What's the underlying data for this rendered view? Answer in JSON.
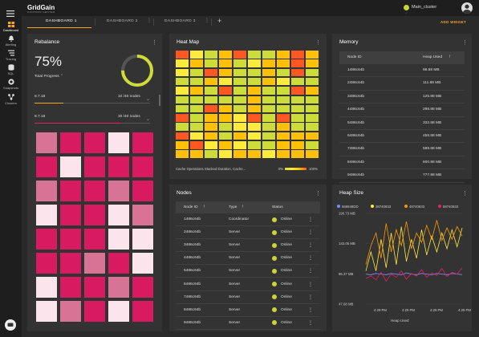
{
  "brand": {
    "name": "GridGain",
    "subtitle": "CONTROL CENTER"
  },
  "cluster": {
    "name": "Main_cluster"
  },
  "sidebar": [
    {
      "label": "Dashboard",
      "icon": "dashboard-icon"
    },
    {
      "label": "Alerting",
      "icon": "bell-icon"
    },
    {
      "label": "Tracing",
      "icon": "tracing-icon"
    },
    {
      "label": "SQL",
      "icon": "database-icon"
    },
    {
      "label": "Snapshots",
      "icon": "snapshot-icon"
    },
    {
      "label": "Clusters",
      "icon": "clusters-icon"
    }
  ],
  "tabs": [
    "DASHBOARD 1",
    "DASHBOARD 2",
    "DASHBOARD 3"
  ],
  "add_tab": "+",
  "add_widget": "ADD WIDGET",
  "rebalance": {
    "title": "Rebalance",
    "percent": "75%",
    "progress_label": "Total Progress",
    "progress_value": 0.75,
    "versions": [
      {
        "name": "8.7.18",
        "nodes": "10 /40 nodes",
        "fill": 0.25,
        "color": "#f5a623"
      },
      {
        "name": "8.7.19",
        "nodes": "30 /40 nodes",
        "fill": 0.75,
        "color": "#e0245e"
      }
    ],
    "colors": [
      "#d97396",
      "#d81b60",
      "#d81b60",
      "#fce4ec",
      "#d81b60",
      "#d81b60",
      "#fce4ec",
      "#d81b60",
      "#d81b60",
      "#d81b60",
      "#d97396",
      "#d81b60",
      "#d81b60",
      "#d97396",
      "#d81b60",
      "#fce4ec",
      "#d81b60",
      "#d81b60",
      "#fce4ec",
      "#d97396",
      "#d81b60",
      "#d81b60",
      "#d81b60",
      "#fce4ec",
      "#fce4ec",
      "#d81b60",
      "#d81b60",
      "#d97396",
      "#d81b60",
      "#fce4ec",
      "#fce4ec",
      "#d81b60",
      "#d81b60",
      "#d97396",
      "#d81b60",
      "#fce4ec",
      "#d97396",
      "#d81b60",
      "#fce4ec",
      "#d81b60"
    ]
  },
  "heatmap": {
    "title": "Heat Map",
    "legend": "Cache Operations Stacked Duration, Cache...",
    "min": "0%",
    "max": "100%",
    "colors": [
      "#ff5722",
      "#ffeb3b",
      "#cddc39",
      "#ffc107",
      "#ff5722",
      "#cddc39",
      "#cddc39",
      "#ffc107",
      "#ff5722",
      "#ffc107",
      "#ffeb3b",
      "#ffc107",
      "#cddc39",
      "#ffc107",
      "#cddc39",
      "#ffeb3b",
      "#ffc107",
      "#ffc107",
      "#ff5722",
      "#ffc107",
      "#ffeb3b",
      "#cddc39",
      "#ff5722",
      "#ffc107",
      "#cddc39",
      "#cddc39",
      "#ffc107",
      "#cddc39",
      "#ff5722",
      "#cddc39",
      "#cddc39",
      "#cddc39",
      "#ffc107",
      "#ffeb3b",
      "#cddc39",
      "#cddc39",
      "#ffc107",
      "#ffeb3b",
      "#cddc39",
      "#cddc39",
      "#ffeb3b",
      "#ffc107",
      "#cddc39",
      "#ff5722",
      "#cddc39",
      "#ffc107",
      "#cddc39",
      "#cddc39",
      "#ff5722",
      "#ffc107",
      "#cddc39",
      "#cddc39",
      "#cddc39",
      "#cddc39",
      "#cddc39",
      "#ffc107",
      "#cddc39",
      "#cddc39",
      "#cddc39",
      "#cddc39",
      "#cddc39",
      "#cddc39",
      "#ff5722",
      "#ffc107",
      "#cddc39",
      "#ffc107",
      "#cddc39",
      "#cddc39",
      "#cddc39",
      "#cddc39",
      "#ff5722",
      "#cddc39",
      "#ffc107",
      "#ffc107",
      "#ffeb3b",
      "#ff5722",
      "#cddc39",
      "#ff5722",
      "#cddc39",
      "#cddc39",
      "#cddc39",
      "#cddc39",
      "#ffc107",
      "#cddc39",
      "#ffeb3b",
      "#ffeb3b",
      "#cddc39",
      "#ffc107",
      "#cddc39",
      "#cddc39",
      "#ff5722",
      "#ffeb3b",
      "#ffc107",
      "#cddc39",
      "#ffc107",
      "#ffeb3b",
      "#cddc39",
      "#ffc107",
      "#ffc107",
      "#ffc107",
      "#ffc107",
      "#ff5722",
      "#ffeb3b",
      "#ffc107",
      "#ffeb3b",
      "#cddc39",
      "#cddc39",
      "#ffc107",
      "#ffc107",
      "#cddc39",
      "#ffc107",
      "#ffc107",
      "#cddc39",
      "#ffeb3b",
      "#ffc107",
      "#ffc107",
      "#ffeb3b",
      "#ffc107",
      "#ffc107",
      "#ffc107"
    ]
  },
  "memory": {
    "title": "Memory",
    "col_node": "Node ID",
    "col_heap": "Heap Used",
    "rows": [
      {
        "node": "1486c64b",
        "heap": "98.88 MB"
      },
      {
        "node": "2486c64b",
        "heap": "111.88 MB"
      },
      {
        "node": "3486c64b",
        "heap": "125.88 MB"
      },
      {
        "node": "4486c64b",
        "heap": "298.88 MB"
      },
      {
        "node": "5486c64b",
        "heap": "332.88 MB"
      },
      {
        "node": "6486c64b",
        "heap": "458.88 MB"
      },
      {
        "node": "7486c64b",
        "heap": "589.88 MB"
      },
      {
        "node": "8486c64b",
        "heap": "600.88 MB"
      },
      {
        "node": "9486c64b",
        "heap": "777.88 MB"
      }
    ]
  },
  "nodes": {
    "title": "Nodes",
    "col_node": "Node ID",
    "col_type": "Type",
    "col_status": "Status",
    "rows": [
      {
        "node": "1486c64b",
        "type": "Coordinator",
        "status": "Online"
      },
      {
        "node": "2486c64b",
        "type": "Server",
        "status": "Online"
      },
      {
        "node": "3486c64b",
        "type": "Server",
        "status": "Online"
      },
      {
        "node": "4486c64b",
        "type": "Server",
        "status": "Online"
      },
      {
        "node": "5486c64b",
        "type": "Server",
        "status": "Online"
      },
      {
        "node": "6486c64b",
        "type": "Server",
        "status": "Online"
      },
      {
        "node": "7486c64b",
        "type": "Server",
        "status": "Online"
      },
      {
        "node": "8486c64b",
        "type": "Server",
        "status": "Online"
      },
      {
        "node": "9486c64b",
        "type": "Server",
        "status": "Online"
      }
    ]
  },
  "heap": {
    "title": "Heap Size",
    "xlabel": "Heap Used"
  },
  "chart_data": {
    "type": "line",
    "title": "Heap Size",
    "xlabel": "Heap Used",
    "ylabel": "",
    "yticks": [
      "190.73 MB",
      "143.05 MB",
      "95.37 MB",
      "47.68 MB"
    ],
    "xticks": [
      "4:29 PM",
      "4:29 PM",
      "4:29 PM",
      "4:29 PM"
    ],
    "ylim": [
      47.68,
      190.73
    ],
    "series": [
      {
        "name": "568948DD",
        "color": "#7b8cff",
        "values": [
          95,
          94,
          96,
          95,
          94,
          96,
          95,
          94,
          97,
          95,
          94,
          96,
          95,
          94,
          96,
          95,
          94,
          96,
          95,
          94
        ]
      },
      {
        "name": "38740833",
        "color": "#ffeb3b",
        "values": [
          100,
          130,
          100,
          150,
          105,
          160,
          110,
          170,
          115,
          150,
          120,
          165,
          125,
          155,
          130,
          160,
          135,
          165,
          138,
          168
        ]
      },
      {
        "name": "48740833",
        "color": "#ff9800",
        "values": [
          110,
          140,
          160,
          120,
          175,
          130,
          165,
          140,
          178,
          135,
          160,
          145,
          172,
          150,
          180,
          148,
          168,
          150,
          170,
          155
        ]
      },
      {
        "name": "58740833",
        "color": "#e91e63",
        "values": [
          88,
          92,
          86,
          98,
          84,
          95,
          90,
          100,
          87,
          96,
          92,
          102,
          90,
          97,
          93,
          104,
          91,
          98,
          95,
          105
        ]
      }
    ]
  }
}
